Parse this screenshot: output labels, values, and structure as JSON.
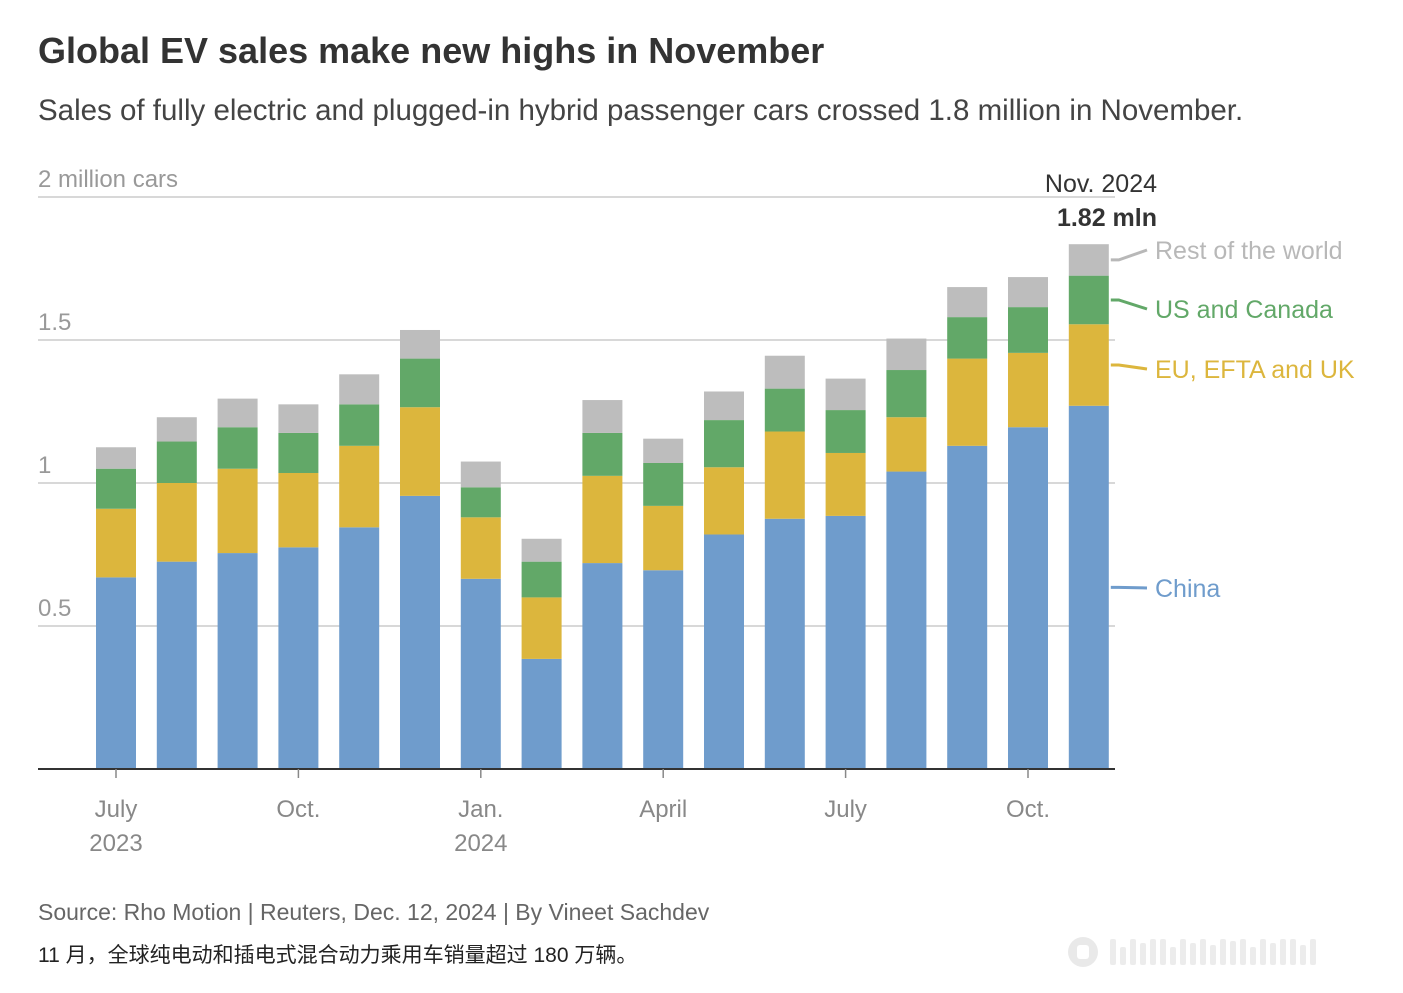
{
  "header": {
    "title": "Global EV sales make new highs in November",
    "subtitle": "Sales of fully electric and plugged-in hybrid passenger cars crossed 1.8 million in November."
  },
  "footer": {
    "source": "Source: Rho Motion | Reuters, Dec. 12, 2024 | By Vineet Sachdev",
    "caption": "11 月，全球纯电动和插电式混合动力乘用车销量超过 180 万辆。"
  },
  "colors": {
    "china": "#6f9ccc",
    "eu": "#dcb63d",
    "us": "#62a868",
    "row": "#bdbdbd",
    "grid": "#cccccc",
    "axis": "#333333",
    "muted_text": "#999999",
    "tick_text": "#888888",
    "annotation": "#333333",
    "legend_row_text": "#b8b8b8"
  },
  "chart_data": {
    "type": "bar",
    "stacked": true,
    "unit_label": "2 million cars",
    "ylim": [
      0,
      2
    ],
    "yticks": [
      {
        "value": 2,
        "label": "2 million cars"
      },
      {
        "value": 1.5,
        "label": "1.5"
      },
      {
        "value": 1,
        "label": "1"
      },
      {
        "value": 0.5,
        "label": "0.5"
      }
    ],
    "categories": [
      "2023-07",
      "2023-08",
      "2023-09",
      "2023-10",
      "2023-11",
      "2023-12",
      "2024-01",
      "2024-02",
      "2024-03",
      "2024-04",
      "2024-05",
      "2024-06",
      "2024-07",
      "2024-08",
      "2024-09",
      "2024-10",
      "2024-11"
    ],
    "xticks": [
      {
        "index": 0,
        "lines": [
          "July",
          "2023"
        ]
      },
      {
        "index": 3,
        "lines": [
          "Oct."
        ]
      },
      {
        "index": 6,
        "lines": [
          "Jan.",
          "2024"
        ]
      },
      {
        "index": 9,
        "lines": [
          "April"
        ]
      },
      {
        "index": 12,
        "lines": [
          "July"
        ]
      },
      {
        "index": 15,
        "lines": [
          "Oct."
        ]
      }
    ],
    "series": [
      {
        "name": "China",
        "key": "china",
        "values": [
          0.67,
          0.725,
          0.755,
          0.775,
          0.845,
          0.955,
          0.665,
          0.385,
          0.72,
          0.695,
          0.82,
          0.875,
          0.885,
          1.04,
          1.13,
          1.195,
          1.27
        ]
      },
      {
        "name": "EU, EFTA and UK",
        "key": "eu",
        "values": [
          0.24,
          0.275,
          0.295,
          0.26,
          0.285,
          0.31,
          0.215,
          0.215,
          0.305,
          0.225,
          0.235,
          0.305,
          0.22,
          0.19,
          0.305,
          0.26,
          0.285
        ]
      },
      {
        "name": "US and Canada",
        "key": "us",
        "values": [
          0.14,
          0.145,
          0.145,
          0.14,
          0.145,
          0.17,
          0.105,
          0.125,
          0.15,
          0.15,
          0.165,
          0.15,
          0.15,
          0.165,
          0.145,
          0.16,
          0.17
        ]
      },
      {
        "name": "Rest of the world",
        "key": "row",
        "values": [
          0.075,
          0.085,
          0.1,
          0.1,
          0.105,
          0.1,
          0.09,
          0.08,
          0.115,
          0.085,
          0.1,
          0.115,
          0.11,
          0.11,
          0.105,
          0.105,
          0.11
        ]
      }
    ],
    "annotation": {
      "index": 16,
      "line1": "Nov. 2024",
      "line2": "1.82 mln"
    },
    "legend": {
      "placement": "right, beside last bar"
    }
  }
}
